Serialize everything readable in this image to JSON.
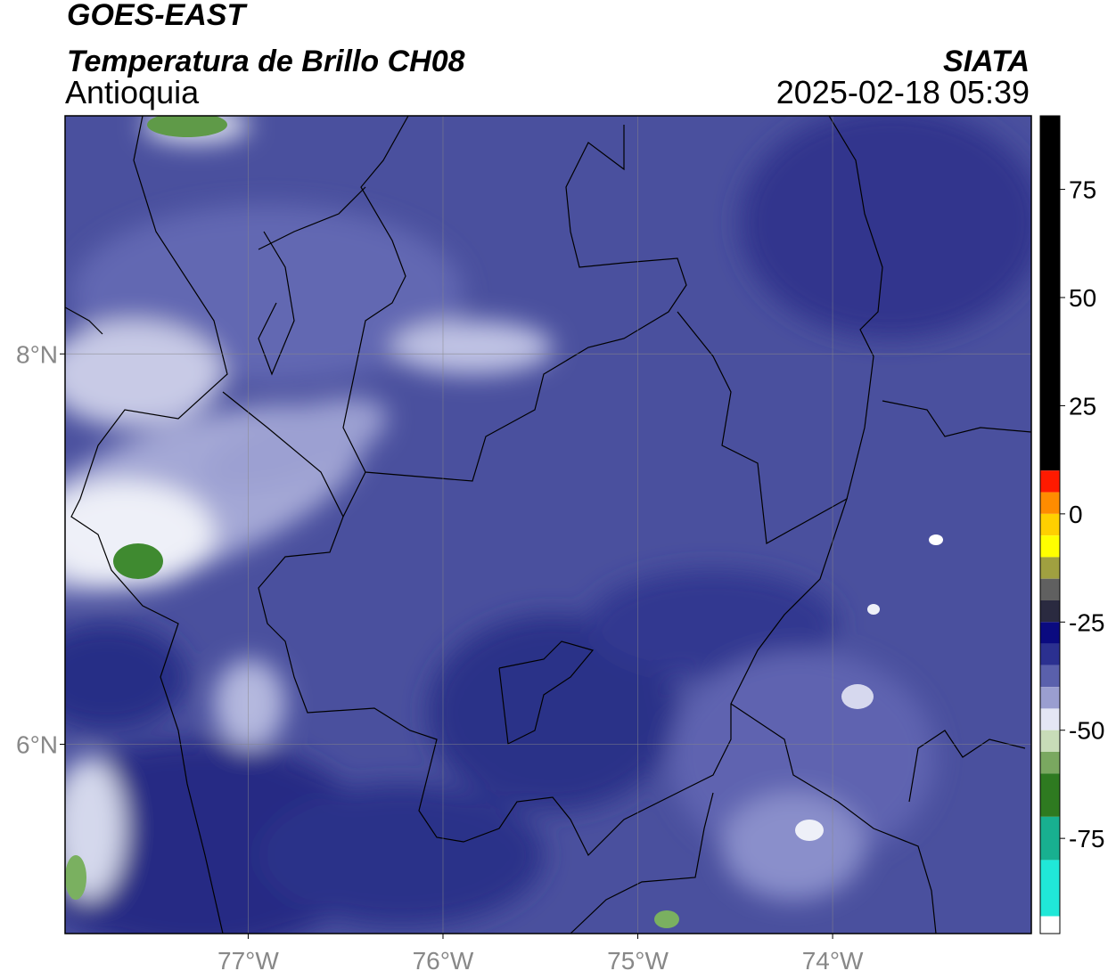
{
  "chart_data": {
    "type": "map",
    "title": "GOES-EAST",
    "subtitle": "Temperatura de Brillo CH08",
    "region": "Antioquia",
    "source": "SIATA",
    "timestamp": "2025-02-18 05:39",
    "xlim": [
      -77.94,
      -72.98
    ],
    "xticks": [
      {
        "value": -77,
        "label": "77°W"
      },
      {
        "value": -76,
        "label": "76°W"
      },
      {
        "value": -75,
        "label": "75°W"
      },
      {
        "value": -74,
        "label": "74°W"
      }
    ],
    "ylim": [
      5.03,
      9.22
    ],
    "yticks": [
      {
        "value": 6,
        "label": "6°N"
      },
      {
        "value": 8,
        "label": "8°N"
      }
    ],
    "grid": true,
    "colorbar": {
      "lim": [
        -97,
        92
      ],
      "ticks": [
        75,
        50,
        25,
        0,
        -25,
        -50,
        -75
      ],
      "segments": [
        {
          "from": 10,
          "to": 92,
          "color": "#000000"
        },
        {
          "from": 5,
          "to": 10,
          "color": "#ff1a00"
        },
        {
          "from": 0,
          "to": 5,
          "color": "#ff8c00"
        },
        {
          "from": -5,
          "to": 0,
          "color": "#ffd000"
        },
        {
          "from": -10,
          "to": -5,
          "color": "#ffff00"
        },
        {
          "from": -15,
          "to": -10,
          "color": "#a0a040"
        },
        {
          "from": -20,
          "to": -15,
          "color": "#606060"
        },
        {
          "from": -25,
          "to": -20,
          "color": "#2a2a40"
        },
        {
          "from": -30,
          "to": -25,
          "color": "#0a0a80"
        },
        {
          "from": -35,
          "to": -30,
          "color": "#2b3090"
        },
        {
          "from": -40,
          "to": -35,
          "color": "#5a60ac"
        },
        {
          "from": -45,
          "to": -40,
          "color": "#9a9ed0"
        },
        {
          "from": -50,
          "to": -45,
          "color": "#e4e6f4"
        },
        {
          "from": -55,
          "to": -50,
          "color": "#c8dcb8"
        },
        {
          "from": -60,
          "to": -55,
          "color": "#7aa860"
        },
        {
          "from": -70,
          "to": -60,
          "color": "#2e7a20"
        },
        {
          "from": -80,
          "to": -70,
          "color": "#18b090"
        },
        {
          "from": -93,
          "to": -80,
          "color": "#20e8d8"
        },
        {
          "from": -97,
          "to": -93,
          "color": "#ffffff"
        }
      ]
    }
  }
}
